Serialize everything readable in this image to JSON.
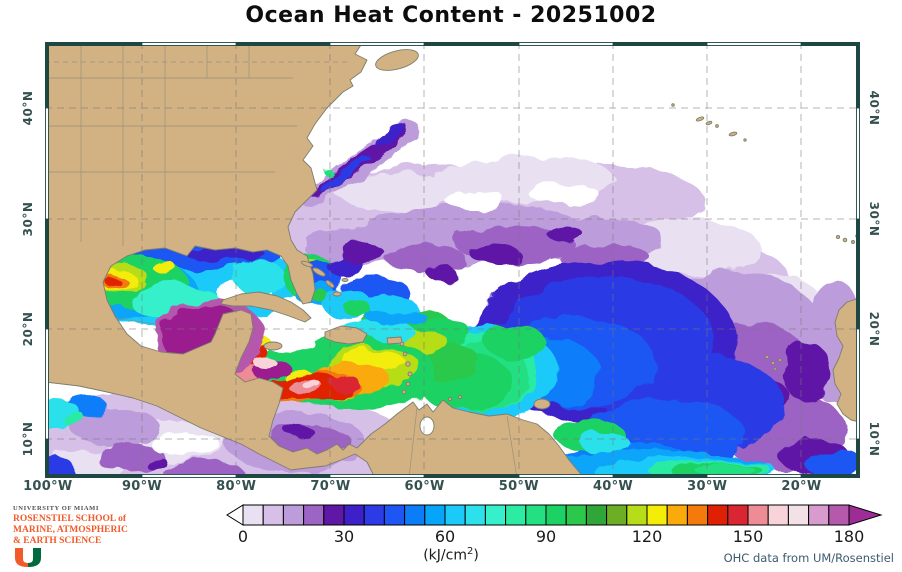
{
  "title": "Ocean Heat Content - 20251002",
  "map": {
    "x_ticks": [
      {
        "label": "100°W",
        "lon": 100
      },
      {
        "label": "90°W",
        "lon": 90
      },
      {
        "label": "80°W",
        "lon": 80
      },
      {
        "label": "70°W",
        "lon": 70
      },
      {
        "label": "60°W",
        "lon": 60
      },
      {
        "label": "50°W",
        "lon": 50
      },
      {
        "label": "40°W",
        "lon": 40
      },
      {
        "label": "30°W",
        "lon": 30
      },
      {
        "label": "20°W",
        "lon": 20
      }
    ],
    "y_ticks": [
      {
        "label": "40°N",
        "lat": 40
      },
      {
        "label": "30°N",
        "lat": 30
      },
      {
        "label": "20°N",
        "lat": 20
      },
      {
        "label": "10°N",
        "lat": 10
      }
    ],
    "land_color": "#d2b183",
    "frame_color": "#1c4743"
  },
  "colorbar": {
    "ticks": [
      "0",
      "30",
      "60",
      "90",
      "120",
      "150",
      "180"
    ],
    "unit_prefix": "(kJ/cm",
    "unit_sup": "2",
    "unit_suffix": ")",
    "arrow_left_color": "#ffffff",
    "arrow_right_color": "#9d2c96",
    "colors": [
      "#e9e1f2",
      "#d7c0e8",
      "#bd9cdb",
      "#9c64c4",
      "#5f17a6",
      "#3e20c9",
      "#2c3be5",
      "#1e56f3",
      "#0b7df9",
      "#07a5f9",
      "#1bcaf9",
      "#2ce1eb",
      "#35f0ca",
      "#2ceba3",
      "#23e082",
      "#1dd264",
      "#2bc84c",
      "#30a538",
      "#6caf25",
      "#b6dd17",
      "#f3ed07",
      "#faaa0b",
      "#f37a0b",
      "#e02004",
      "#d92632",
      "#ee8c96",
      "#f8d3da",
      "#f2e2e7",
      "#d79bcd",
      "#b559ad"
    ]
  },
  "footer": {
    "logo_line1": "UNIVERSITY OF MIAMI",
    "logo_line2": "ROSENSTIEL SCHOOL of",
    "logo_line3": "MARINE, ATMOSPHERIC",
    "logo_line4": "& EARTH SCIENCE",
    "logo_orange": "#f15a29",
    "logo_green": "#00693e",
    "attribution": "OHC data from UM/Rosenstiel"
  },
  "chart_data": {
    "type": "heatmap",
    "title": "Ocean Heat Content - 20251002",
    "units": "kJ/cm2",
    "colorbar_range": [
      0,
      180
    ],
    "colorbar_ticks": [
      0,
      30,
      60,
      90,
      120,
      150,
      180
    ],
    "colorbar_step_per_cell": 6,
    "lon_ticks_deg_west": [
      100,
      90,
      80,
      70,
      60,
      50,
      40,
      30,
      20
    ],
    "lat_ticks_deg_north": [
      40,
      30,
      20,
      10
    ],
    "grid": "10-degree dashed graticule",
    "qualitative_field": [
      {
        "region": "NW Caribbean (Yucatan-Cuba-Jamaica)",
        "approx_value": ">180"
      },
      {
        "region": "Central Caribbean band 12-17N 60-80W",
        "approx_value": "130-180"
      },
      {
        "region": "Eastern Caribbean / near Puerto Rico",
        "approx_value": "100-140"
      },
      {
        "region": "Gulf of Mexico warm eddies",
        "approx_value": "120-160"
      },
      {
        "region": "Gulf of Mexico background",
        "approx_value": "60-90"
      },
      {
        "region": "Tropical Atlantic 45-60W",
        "approx_value": "70-100"
      },
      {
        "region": "Central Atlantic 25-45W south of 22N",
        "approx_value": "30-60"
      },
      {
        "region": "Eastern Atlantic 15-35W 10-25N",
        "approx_value": "6-30"
      },
      {
        "region": "Gulf Stream streak off Cape Hatteras",
        "approx_value": "25-45"
      },
      {
        "region": "North Atlantic above ~32N and NE Atlantic",
        "approx_value": "0 / no data (white)"
      },
      {
        "region": "Eastern Pacific corner",
        "approx_value": "6-25"
      }
    ]
  }
}
